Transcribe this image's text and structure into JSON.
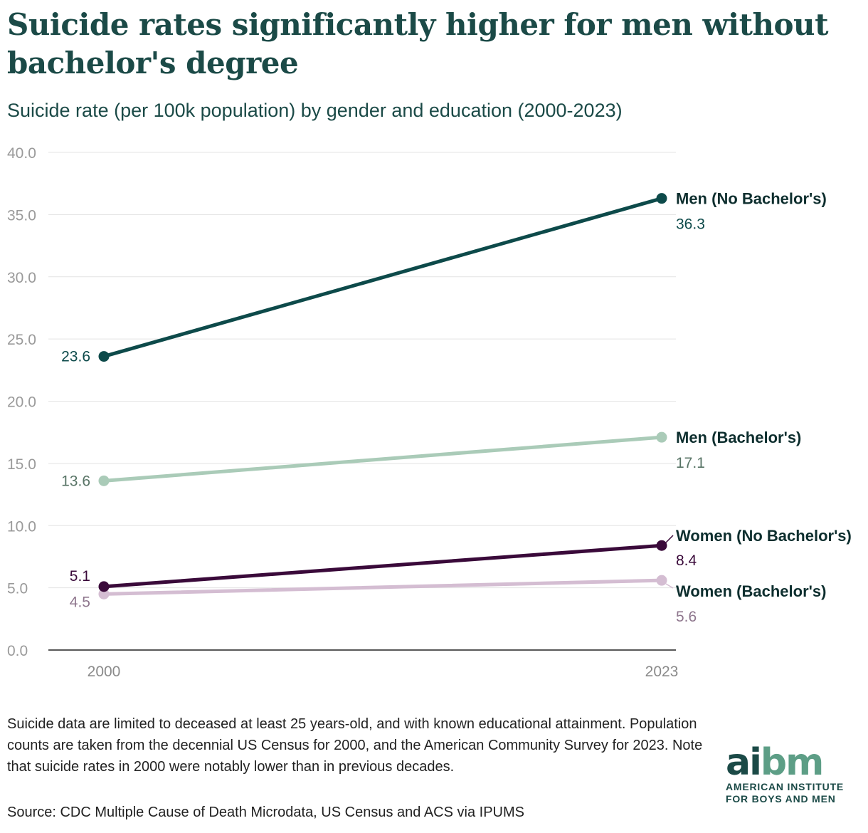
{
  "title": "Suicide rates significantly higher for men without bachelor's degree",
  "subtitle": "Suicide rate (per 100k population) by gender and education (2000-2023)",
  "chart_data": {
    "type": "line",
    "x": [
      "2000",
      "2023"
    ],
    "ylim": [
      0,
      40
    ],
    "yticks": [
      "0.0",
      "5.0",
      "10.0",
      "15.0",
      "20.0",
      "25.0",
      "30.0",
      "35.0",
      "40.0"
    ],
    "grid": true,
    "series": [
      {
        "name": "Men (No Bachelor's)",
        "values": [
          23.6,
          36.3
        ],
        "labels": [
          "23.6",
          "36.3"
        ],
        "color": "#0d4a4a",
        "label_color": "#0d4a4a"
      },
      {
        "name": "Men (Bachelor's)",
        "values": [
          13.6,
          17.1
        ],
        "labels": [
          "13.6",
          "17.1"
        ],
        "color": "#aacbb8",
        "label_color": "#587466"
      },
      {
        "name": "Women (No Bachelor's)",
        "values": [
          5.1,
          8.4
        ],
        "labels": [
          "5.1",
          "8.4"
        ],
        "color": "#3a0a3a",
        "label_color": "#3a0a3a"
      },
      {
        "name": "Women (Bachelor's)",
        "values": [
          4.5,
          5.6
        ],
        "labels": [
          "4.5",
          "5.6"
        ],
        "color": "#d4bdd2",
        "label_color": "#8e768d"
      }
    ]
  },
  "note": "Suicide data are limited to deceased at least 25 years-old, and with known educational attainment. Population counts are taken from the decennial US Census for 2000, and the American Community Survey for 2023. Note that suicide rates in 2000 were notably lower than in previous decades.",
  "source": "Source: CDC Multiple Cause of Death Microdata, US Census and ACS via IPUMS",
  "logo": {
    "mark_part1": "ai",
    "mark_part2": "bm",
    "line1": "AMERICAN INSTITUTE",
    "line2": "FOR BOYS AND MEN"
  }
}
